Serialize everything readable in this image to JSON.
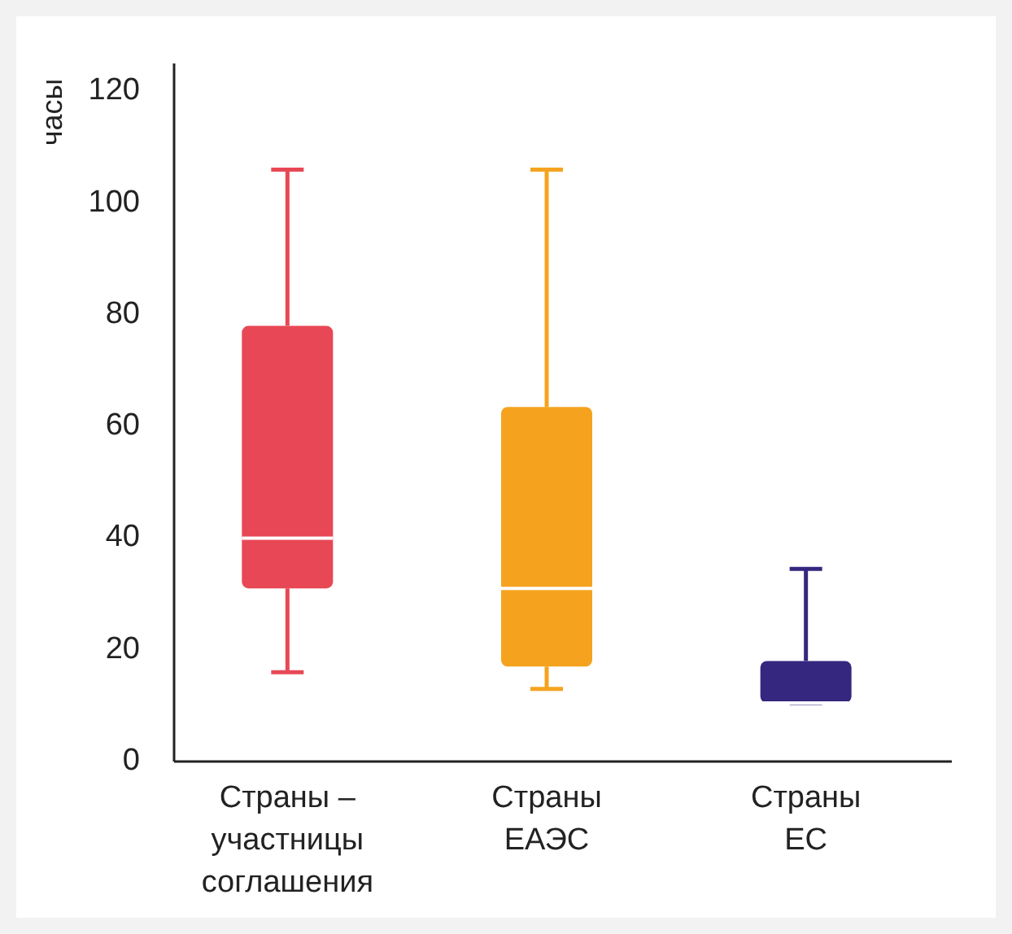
{
  "chart_data": {
    "type": "box",
    "ylabel": "часы",
    "categories": [
      "Страны – участницы соглашения",
      "Страны ЕАЭС",
      "Страны ЕС"
    ],
    "colors": [
      "#e84855",
      "#f5a31f",
      "#35267f"
    ],
    "boxes": [
      {
        "low": 16,
        "q1": 31,
        "median": 40,
        "q3": 78,
        "high": 106
      },
      {
        "low": 13,
        "q1": 17,
        "median": 31,
        "q3": 63.5,
        "high": 106
      },
      {
        "low": 10.5,
        "q1": 10.5,
        "median": 10.5,
        "q3": 18,
        "high": 34.5
      }
    ],
    "ylim": [
      0,
      125
    ],
    "yticks": [
      0,
      20,
      40,
      60,
      80,
      100,
      120
    ],
    "grid": false
  }
}
